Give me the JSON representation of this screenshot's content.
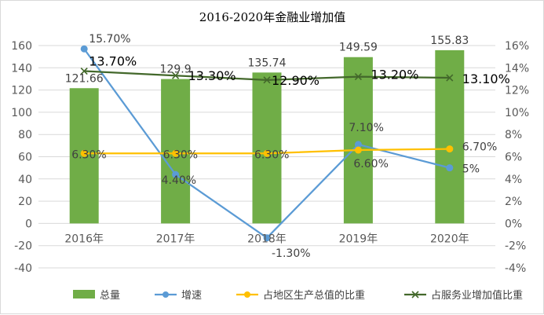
{
  "chart_data": {
    "type": "bar",
    "title": "2016-2020年金融业增加值",
    "categories": [
      "2016年",
      "2017年",
      "2018年",
      "2019年",
      "2020年"
    ],
    "y_left": {
      "min": -40,
      "max": 160,
      "step": 20,
      "ticks": [
        "-40",
        "-20",
        "0",
        "20",
        "40",
        "60",
        "80",
        "100",
        "120",
        "140",
        "160"
      ]
    },
    "y_right": {
      "min": -4,
      "max": 16,
      "step": 2,
      "ticks": [
        "-4%",
        "-2%",
        "0%",
        "2%",
        "4%",
        "6%",
        "8%",
        "10%",
        "12%",
        "14%",
        "16%"
      ]
    },
    "grid": true,
    "legend_position": "bottom",
    "series": [
      {
        "name": "总量",
        "kind": "bar",
        "axis": "left",
        "color": "#70ad47",
        "values": [
          121.66,
          129.9,
          135.74,
          149.59,
          155.83
        ],
        "labels": [
          "121.66",
          "129.9",
          "135.74",
          "149.59",
          "155.83"
        ]
      },
      {
        "name": "增速",
        "kind": "line",
        "axis": "right",
        "color": "#5b9bd5",
        "marker": "circle",
        "values": [
          15.7,
          4.4,
          -1.3,
          7.1,
          5.0
        ],
        "labels": [
          "15.70%",
          "4.40%",
          "-1.30%",
          "7.10%",
          "5%"
        ]
      },
      {
        "name": "占地区生产总值的比重",
        "kind": "line",
        "axis": "right",
        "color": "#ffc000",
        "marker": "circle",
        "values": [
          6.3,
          6.3,
          6.3,
          6.6,
          6.7
        ],
        "labels": [
          "6.30%",
          "6.30%",
          "6.30%",
          "6.60%",
          "6.70%"
        ]
      },
      {
        "name": "占服务业增加值比重",
        "kind": "line",
        "axis": "right",
        "color": "#43682b",
        "marker": "x",
        "values": [
          13.7,
          13.3,
          12.9,
          13.2,
          13.1
        ],
        "labels": [
          "13.70%",
          "13.30%",
          "12.90%",
          "13.20%",
          "13.10%"
        ]
      }
    ]
  }
}
